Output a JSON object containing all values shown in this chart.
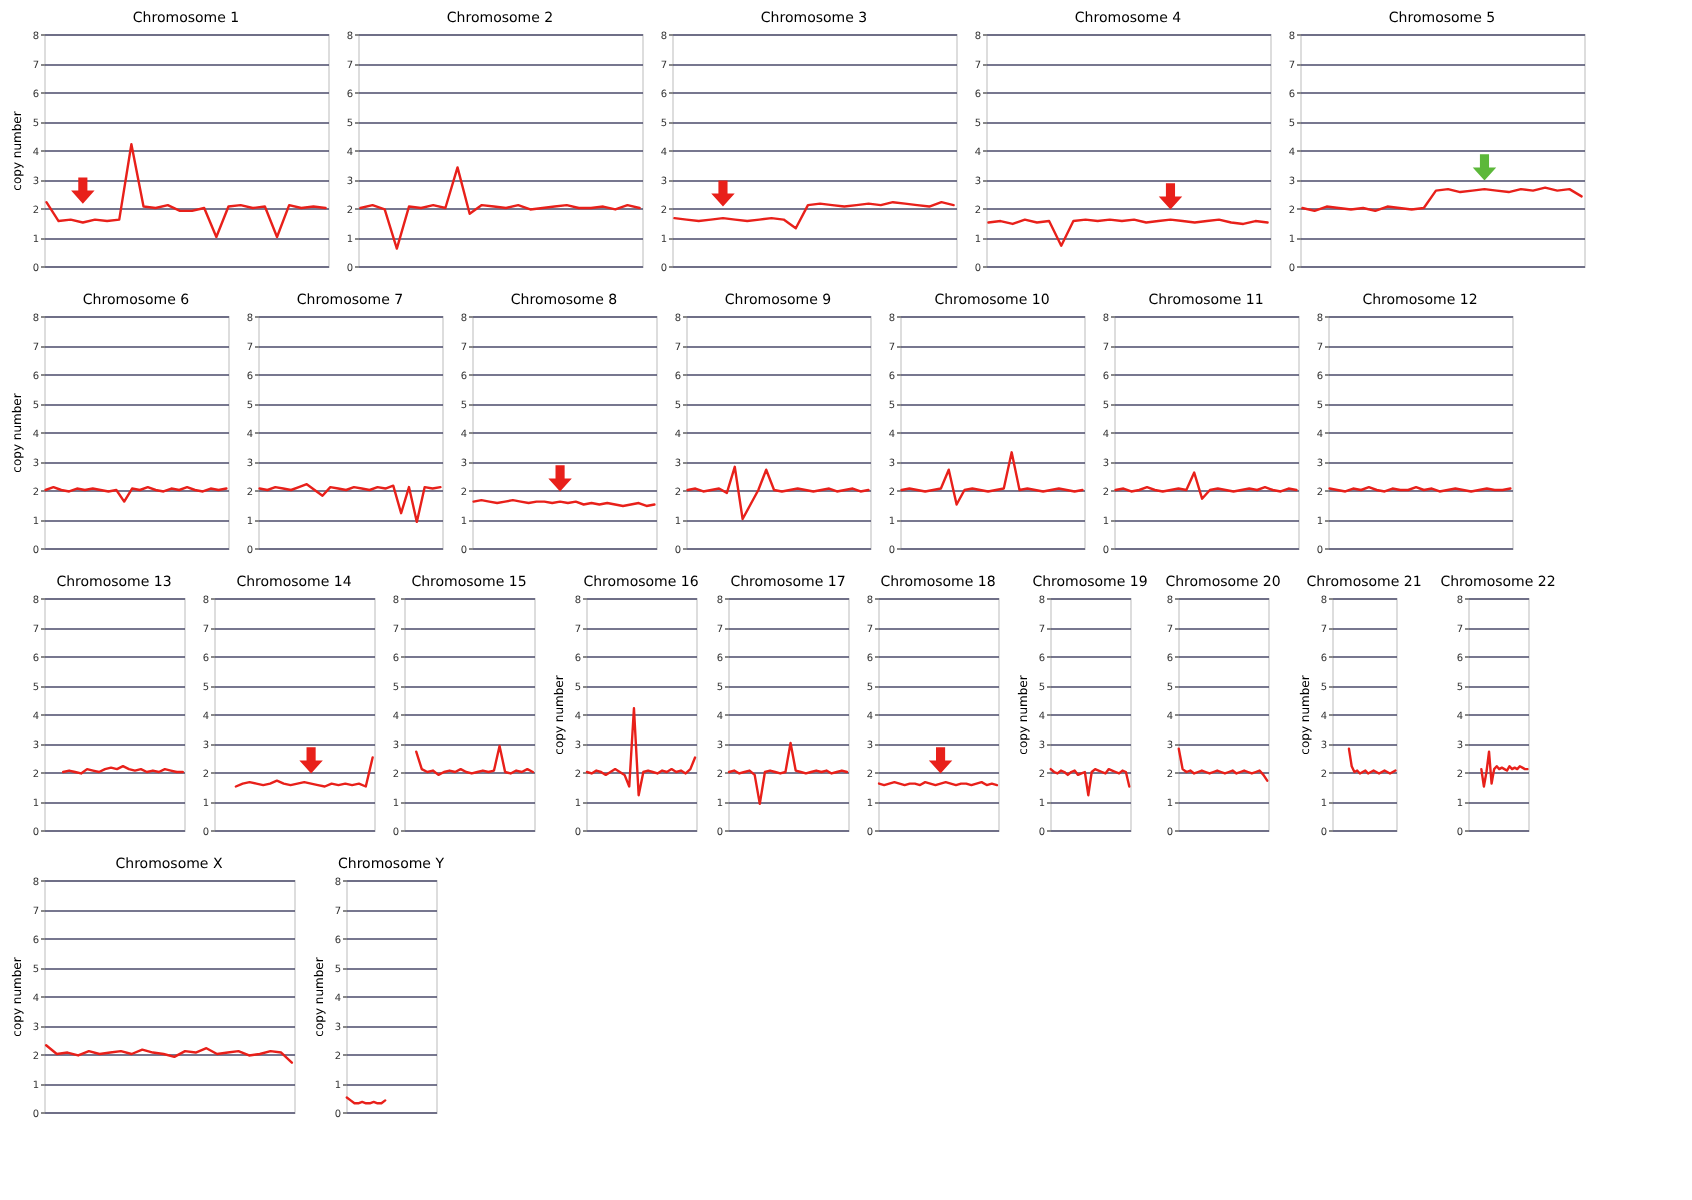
{
  "chart_data": [
    {
      "type": "line",
      "title": "Chromosome 1",
      "ylabel": "copy number",
      "categories": [
        null,
        null,
        null,
        null,
        null,
        null,
        null,
        null,
        null,
        null,
        null,
        null,
        null,
        null,
        null,
        null,
        null,
        null,
        null,
        null,
        null,
        null,
        null,
        null
      ],
      "series": [
        {
          "color": "#e8201a",
          "values": [
            2.2,
            1.55,
            1.6,
            1.5,
            1.6,
            1.55,
            1.6,
            4.2,
            2.05,
            2.0,
            2.1,
            1.9,
            1.9,
            2.0,
            1.0,
            2.05,
            2.1,
            2.0,
            2.05,
            1.0,
            2.1,
            2.0,
            2.05,
            2.0
          ]
        }
      ],
      "ylim": [
        0,
        8
      ],
      "yticks": [
        0,
        1,
        2,
        3,
        4,
        5,
        6,
        7,
        8
      ],
      "grid": "y"
    },
    {
      "type": "line",
      "title": "Chromosome 2",
      "categories": [
        null,
        null,
        null,
        null,
        null,
        null,
        null,
        null,
        null,
        null,
        null,
        null,
        null,
        null,
        null,
        null,
        null,
        null,
        null,
        null,
        null,
        null,
        null,
        null
      ],
      "series": [
        {
          "color": "#e8201a",
          "values": [
            2.0,
            2.1,
            1.95,
            0.6,
            2.05,
            2.0,
            2.1,
            2.0,
            3.4,
            1.8,
            2.1,
            2.05,
            2.0,
            2.1,
            1.95,
            2.0,
            2.05,
            2.1,
            2.0,
            2.0,
            2.05,
            1.95,
            2.1,
            2.0
          ]
        }
      ],
      "ylim": [
        0,
        8
      ],
      "yticks": [
        0,
        1,
        2,
        3,
        4,
        5,
        6,
        7,
        8
      ],
      "grid": "y"
    },
    {
      "type": "line",
      "title": "Chromosome 3",
      "categories": [
        null,
        null,
        null,
        null,
        null,
        null,
        null,
        null,
        null,
        null,
        null,
        null,
        null,
        null,
        null,
        null,
        null,
        null,
        null,
        null,
        null,
        null,
        null,
        null
      ],
      "series": [
        {
          "color": "#e8201a",
          "values": [
            1.65,
            1.6,
            1.55,
            1.6,
            1.65,
            1.6,
            1.55,
            1.6,
            1.65,
            1.6,
            1.3,
            2.1,
            2.15,
            2.1,
            2.05,
            2.1,
            2.15,
            2.1,
            2.2,
            2.15,
            2.1,
            2.05,
            2.2,
            2.1
          ]
        }
      ],
      "ylim": [
        0,
        8
      ],
      "yticks": [
        0,
        1,
        2,
        3,
        4,
        5,
        6,
        7,
        8
      ],
      "grid": "y"
    },
    {
      "type": "line",
      "title": "Chromosome 4",
      "categories": [
        null,
        null,
        null,
        null,
        null,
        null,
        null,
        null,
        null,
        null,
        null,
        null,
        null,
        null,
        null,
        null,
        null,
        null,
        null,
        null,
        null,
        null,
        null,
        null
      ],
      "series": [
        {
          "color": "#e8201a",
          "values": [
            1.5,
            1.55,
            1.45,
            1.6,
            1.5,
            1.55,
            0.7,
            1.55,
            1.6,
            1.55,
            1.6,
            1.55,
            1.6,
            1.5,
            1.55,
            1.6,
            1.55,
            1.5,
            1.55,
            1.6,
            1.5,
            1.45,
            1.55,
            1.5
          ]
        }
      ],
      "ylim": [
        0,
        8
      ],
      "yticks": [
        0,
        1,
        2,
        3,
        4,
        5,
        6,
        7,
        8
      ],
      "grid": "y"
    },
    {
      "type": "line",
      "title": "Chromosome 5",
      "categories": [
        null,
        null,
        null,
        null,
        null,
        null,
        null,
        null,
        null,
        null,
        null,
        null,
        null,
        null,
        null,
        null,
        null,
        null,
        null,
        null,
        null,
        null,
        null,
        null
      ],
      "series": [
        {
          "color": "#e8201a",
          "values": [
            2.0,
            1.9,
            2.05,
            2.0,
            1.95,
            2.0,
            1.9,
            2.05,
            2.0,
            1.95,
            2.0,
            2.6,
            2.65,
            2.55,
            2.6,
            2.65,
            2.6,
            2.55,
            2.65,
            2.6,
            2.7,
            2.6,
            2.65,
            2.4
          ]
        }
      ],
      "ylim": [
        0,
        8
      ],
      "yticks": [
        0,
        1,
        2,
        3,
        4,
        5,
        6,
        7,
        8
      ],
      "grid": "y"
    },
    {
      "type": "line",
      "title": "Chromosome 6",
      "ylabel": "copy number",
      "categories": [
        null,
        null,
        null,
        null,
        null,
        null,
        null,
        null,
        null,
        null,
        null,
        null,
        null,
        null,
        null,
        null,
        null,
        null,
        null,
        null,
        null,
        null,
        null,
        null
      ],
      "series": [
        {
          "color": "#e8201a",
          "values": [
            2.0,
            2.1,
            2.0,
            1.95,
            2.05,
            2.0,
            2.05,
            2.0,
            1.95,
            2.0,
            1.6,
            2.05,
            2.0,
            2.1,
            2.0,
            1.95,
            2.05,
            2.0,
            2.1,
            2.0,
            1.95,
            2.05,
            2.0,
            2.05
          ]
        }
      ],
      "ylim": [
        0,
        8
      ],
      "yticks": [
        0,
        1,
        2,
        3,
        4,
        5,
        6,
        7,
        8
      ],
      "grid": "y"
    },
    {
      "type": "line",
      "title": "Chromosome 7",
      "categories": [
        null,
        null,
        null,
        null,
        null,
        null,
        null,
        null,
        null,
        null,
        null,
        null,
        null,
        null,
        null,
        null,
        null,
        null,
        null,
        null,
        null,
        null,
        null,
        null
      ],
      "series": [
        {
          "color": "#e8201a",
          "values": [
            2.05,
            2.0,
            2.1,
            2.05,
            2.0,
            2.1,
            2.2,
            2.0,
            1.8,
            2.1,
            2.05,
            2.0,
            2.1,
            2.05,
            2.0,
            2.1,
            2.05,
            2.15,
            1.2,
            2.1,
            0.9,
            2.1,
            2.05,
            2.1
          ]
        }
      ],
      "ylim": [
        0,
        8
      ],
      "yticks": [
        0,
        1,
        2,
        3,
        4,
        5,
        6,
        7,
        8
      ],
      "grid": "y"
    },
    {
      "type": "line",
      "title": "Chromosome 8",
      "categories": [
        null,
        null,
        null,
        null,
        null,
        null,
        null,
        null,
        null,
        null,
        null,
        null,
        null,
        null,
        null,
        null,
        null,
        null,
        null,
        null,
        null,
        null,
        null,
        null
      ],
      "series": [
        {
          "color": "#e8201a",
          "values": [
            1.6,
            1.65,
            1.6,
            1.55,
            1.6,
            1.65,
            1.6,
            1.55,
            1.6,
            1.6,
            1.55,
            1.6,
            1.55,
            1.6,
            1.5,
            1.55,
            1.5,
            1.55,
            1.5,
            1.45,
            1.5,
            1.55,
            1.45,
            1.5
          ]
        }
      ],
      "ylim": [
        0,
        8
      ],
      "yticks": [
        0,
        1,
        2,
        3,
        4,
        5,
        6,
        7,
        8
      ],
      "grid": "y"
    },
    {
      "type": "line",
      "title": "Chromosome 9",
      "categories": [
        null,
        null,
        null,
        null,
        null,
        null,
        null,
        null,
        null,
        null,
        null,
        null,
        null,
        null,
        null,
        null,
        null,
        null,
        null,
        null,
        null,
        null,
        null,
        null
      ],
      "series": [
        {
          "color": "#e8201a",
          "values": [
            2.0,
            2.05,
            1.95,
            2.0,
            2.05,
            1.9,
            2.8,
            1.0,
            1.5,
            2.0,
            2.7,
            2.0,
            1.95,
            2.0,
            2.05,
            2.0,
            1.95,
            2.0,
            2.05,
            1.95,
            2.0,
            2.05,
            1.95,
            2.0
          ]
        }
      ],
      "ylim": [
        0,
        8
      ],
      "yticks": [
        0,
        1,
        2,
        3,
        4,
        5,
        6,
        7,
        8
      ],
      "grid": "y"
    },
    {
      "type": "line",
      "title": "Chromosome 10",
      "categories": [
        null,
        null,
        null,
        null,
        null,
        null,
        null,
        null,
        null,
        null,
        null,
        null,
        null,
        null,
        null,
        null,
        null,
        null,
        null,
        null,
        null,
        null,
        null,
        null
      ],
      "series": [
        {
          "color": "#e8201a",
          "values": [
            2.0,
            2.05,
            2.0,
            1.95,
            2.0,
            2.05,
            2.7,
            1.5,
            2.0,
            2.05,
            2.0,
            1.95,
            2.0,
            2.05,
            3.3,
            2.0,
            2.05,
            2.0,
            1.95,
            2.0,
            2.05,
            2.0,
            1.95,
            2.0
          ]
        }
      ],
      "ylim": [
        0,
        8
      ],
      "yticks": [
        0,
        1,
        2,
        3,
        4,
        5,
        6,
        7,
        8
      ],
      "grid": "y"
    },
    {
      "type": "line",
      "title": "Chromosome 11",
      "categories": [
        null,
        null,
        null,
        null,
        null,
        null,
        null,
        null,
        null,
        null,
        null,
        null,
        null,
        null,
        null,
        null,
        null,
        null,
        null,
        null,
        null,
        null,
        null,
        null
      ],
      "series": [
        {
          "color": "#e8201a",
          "values": [
            2.0,
            2.05,
            1.95,
            2.0,
            2.1,
            2.0,
            1.95,
            2.0,
            2.05,
            2.0,
            2.6,
            1.7,
            2.0,
            2.05,
            2.0,
            1.95,
            2.0,
            2.05,
            2.0,
            2.1,
            2.0,
            1.95,
            2.05,
            2.0
          ]
        }
      ],
      "ylim": [
        0,
        8
      ],
      "yticks": [
        0,
        1,
        2,
        3,
        4,
        5,
        6,
        7,
        8
      ],
      "grid": "y"
    },
    {
      "type": "line",
      "title": "Chromosome 12",
      "categories": [
        null,
        null,
        null,
        null,
        null,
        null,
        null,
        null,
        null,
        null,
        null,
        null,
        null,
        null,
        null,
        null,
        null,
        null,
        null,
        null,
        null,
        null,
        null,
        null
      ],
      "series": [
        {
          "color": "#e8201a",
          "values": [
            2.05,
            2.0,
            1.95,
            2.05,
            2.0,
            2.1,
            2.0,
            1.95,
            2.05,
            2.0,
            2.0,
            2.1,
            2.0,
            2.05,
            1.95,
            2.0,
            2.05,
            2.0,
            1.95,
            2.0,
            2.05,
            2.0,
            2.0,
            2.05
          ]
        }
      ],
      "ylim": [
        0,
        8
      ],
      "yticks": [
        0,
        1,
        2,
        3,
        4,
        5,
        6,
        7,
        8
      ],
      "grid": "y"
    },
    {
      "type": "line",
      "title": "Chromosome 13",
      "categories": [
        null,
        null,
        null,
        null,
        null,
        null,
        null,
        null,
        null,
        null,
        null,
        null,
        null,
        null,
        null,
        null,
        null,
        null,
        null,
        null,
        null,
        null,
        null,
        null
      ],
      "series": [
        {
          "color": "#e8201a",
          "values": [
            null,
            null,
            null,
            2.0,
            2.05,
            2.0,
            1.95,
            2.1,
            2.05,
            2.0,
            2.1,
            2.15,
            2.1,
            2.2,
            2.1,
            2.05,
            2.1,
            2.0,
            2.05,
            2.0,
            2.1,
            2.05,
            2.0,
            2.0
          ]
        }
      ],
      "ylim": [
        0,
        8
      ],
      "yticks": [
        0,
        1,
        2,
        3,
        4,
        5,
        6,
        7,
        8
      ],
      "grid": "y"
    },
    {
      "type": "line",
      "title": "Chromosome 14",
      "categories": [
        null,
        null,
        null,
        null,
        null,
        null,
        null,
        null,
        null,
        null,
        null,
        null,
        null,
        null,
        null,
        null,
        null,
        null,
        null,
        null,
        null,
        null,
        null,
        null
      ],
      "series": [
        {
          "color": "#e8201a",
          "values": [
            null,
            null,
            null,
            1.5,
            1.6,
            1.65,
            1.6,
            1.55,
            1.6,
            1.7,
            1.6,
            1.55,
            1.6,
            1.65,
            1.6,
            1.55,
            1.5,
            1.6,
            1.55,
            1.6,
            1.55,
            1.6,
            1.5,
            2.5
          ]
        }
      ],
      "ylim": [
        0,
        8
      ],
      "yticks": [
        0,
        1,
        2,
        3,
        4,
        5,
        6,
        7,
        8
      ],
      "grid": "y"
    },
    {
      "type": "line",
      "title": "Chromosome 15",
      "categories": [
        null,
        null,
        null,
        null,
        null,
        null,
        null,
        null,
        null,
        null,
        null,
        null,
        null,
        null,
        null,
        null,
        null,
        null,
        null,
        null,
        null,
        null,
        null,
        null
      ],
      "series": [
        {
          "color": "#e8201a",
          "values": [
            null,
            null,
            2.7,
            2.1,
            2.0,
            2.05,
            1.9,
            2.0,
            2.05,
            2.0,
            2.1,
            2.0,
            1.95,
            2.0,
            2.05,
            2.0,
            2.05,
            2.9,
            2.0,
            1.95,
            2.05,
            2.0,
            2.1,
            2.0
          ]
        }
      ],
      "ylim": [
        0,
        8
      ],
      "yticks": [
        0,
        1,
        2,
        3,
        4,
        5,
        6,
        7,
        8
      ],
      "grid": "y"
    },
    {
      "type": "line",
      "title": "Chromosome 16",
      "ylabel": "copy number",
      "categories": [
        null,
        null,
        null,
        null,
        null,
        null,
        null,
        null,
        null,
        null,
        null,
        null,
        null,
        null,
        null,
        null,
        null,
        null,
        null,
        null,
        null,
        null,
        null,
        null
      ],
      "series": [
        {
          "color": "#e8201a",
          "values": [
            2.0,
            1.95,
            2.05,
            2.0,
            1.9,
            2.0,
            2.1,
            2.0,
            1.9,
            1.5,
            4.2,
            1.2,
            2.0,
            2.05,
            2.0,
            1.95,
            2.05,
            2.0,
            2.1,
            2.0,
            2.05,
            1.95,
            2.1,
            2.5
          ]
        }
      ],
      "ylim": [
        0,
        8
      ],
      "yticks": [
        0,
        1,
        2,
        3,
        4,
        5,
        6,
        7,
        8
      ],
      "grid": "y"
    },
    {
      "type": "line",
      "title": "Chromosome 17",
      "categories": [
        null,
        null,
        null,
        null,
        null,
        null,
        null,
        null,
        null,
        null,
        null,
        null,
        null,
        null,
        null,
        null,
        null,
        null,
        null,
        null,
        null,
        null,
        null,
        null
      ],
      "series": [
        {
          "color": "#e8201a",
          "values": [
            2.0,
            2.05,
            1.95,
            2.0,
            2.05,
            1.9,
            0.9,
            2.0,
            2.05,
            2.0,
            1.95,
            2.0,
            3.0,
            2.05,
            2.0,
            1.95,
            2.0,
            2.05,
            2.0,
            2.05,
            1.95,
            2.0,
            2.05,
            2.0
          ]
        }
      ],
      "ylim": [
        0,
        8
      ],
      "yticks": [
        0,
        1,
        2,
        3,
        4,
        5,
        6,
        7,
        8
      ],
      "grid": "y"
    },
    {
      "type": "line",
      "title": "Chromosome 18",
      "categories": [
        null,
        null,
        null,
        null,
        null,
        null,
        null,
        null,
        null,
        null,
        null,
        null,
        null,
        null,
        null,
        null,
        null,
        null,
        null,
        null,
        null,
        null,
        null,
        null
      ],
      "series": [
        {
          "color": "#e8201a",
          "values": [
            1.6,
            1.55,
            1.6,
            1.65,
            1.6,
            1.55,
            1.6,
            1.6,
            1.55,
            1.65,
            1.6,
            1.55,
            1.6,
            1.65,
            1.6,
            1.55,
            1.6,
            1.6,
            1.55,
            1.6,
            1.65,
            1.55,
            1.6,
            1.55
          ]
        }
      ],
      "ylim": [
        0,
        8
      ],
      "yticks": [
        0,
        1,
        2,
        3,
        4,
        5,
        6,
        7,
        8
      ],
      "grid": "y"
    },
    {
      "type": "line",
      "title": "Chromosome 19",
      "ylabel": "copy number",
      "categories": [
        null,
        null,
        null,
        null,
        null,
        null,
        null,
        null,
        null,
        null,
        null,
        null,
        null,
        null,
        null,
        null,
        null,
        null,
        null,
        null,
        null,
        null,
        null,
        null
      ],
      "series": [
        {
          "color": "#e8201a",
          "values": [
            2.1,
            2.0,
            1.95,
            2.05,
            2.0,
            1.9,
            2.0,
            2.05,
            1.9,
            1.95,
            2.0,
            1.2,
            2.0,
            2.1,
            2.05,
            2.0,
            1.95,
            2.1,
            2.05,
            2.0,
            1.95,
            2.05,
            2.0,
            1.5
          ]
        }
      ],
      "ylim": [
        0,
        8
      ],
      "yticks": [
        0,
        1,
        2,
        3,
        4,
        5,
        6,
        7,
        8
      ],
      "grid": "y"
    },
    {
      "type": "line",
      "title": "Chromosome 20",
      "categories": [
        null,
        null,
        null,
        null,
        null,
        null,
        null,
        null,
        null,
        null,
        null,
        null,
        null,
        null,
        null,
        null,
        null,
        null,
        null,
        null,
        null,
        null,
        null,
        null
      ],
      "series": [
        {
          "color": "#e8201a",
          "values": [
            2.8,
            2.1,
            2.0,
            2.05,
            1.95,
            2.0,
            2.05,
            2.0,
            1.95,
            2.0,
            2.05,
            2.0,
            1.95,
            2.0,
            2.05,
            1.95,
            2.0,
            2.05,
            2.0,
            1.95,
            2.0,
            2.05,
            1.9,
            1.7
          ]
        }
      ],
      "ylim": [
        0,
        8
      ],
      "yticks": [
        0,
        1,
        2,
        3,
        4,
        5,
        6,
        7,
        8
      ],
      "grid": "y"
    },
    {
      "type": "line",
      "title": "Chromosome 21",
      "ylabel": "copy number",
      "categories": [
        null,
        null,
        null,
        null,
        null,
        null,
        null,
        null,
        null,
        null,
        null,
        null,
        null,
        null,
        null,
        null,
        null,
        null,
        null,
        null,
        null,
        null,
        null,
        null
      ],
      "series": [
        {
          "color": "#e8201a",
          "values": [
            null,
            null,
            null,
            null,
            null,
            null,
            2.8,
            2.2,
            2.0,
            2.05,
            1.95,
            2.0,
            2.05,
            1.95,
            2.0,
            2.05,
            2.0,
            1.95,
            2.0,
            2.05,
            2.0,
            1.95,
            2.0,
            2.05
          ]
        }
      ],
      "ylim": [
        0,
        8
      ],
      "yticks": [
        0,
        1,
        2,
        3,
        4,
        5,
        6,
        7,
        8
      ],
      "grid": "y"
    },
    {
      "type": "line",
      "title": "Chromosome 22",
      "categories": [
        null,
        null,
        null,
        null,
        null,
        null,
        null,
        null,
        null,
        null,
        null,
        null,
        null,
        null,
        null,
        null,
        null,
        null,
        null,
        null,
        null,
        null,
        null,
        null
      ],
      "series": [
        {
          "color": "#e8201a",
          "values": [
            null,
            null,
            null,
            null,
            null,
            2.1,
            1.5,
            2.0,
            2.7,
            1.6,
            2.1,
            2.2,
            2.1,
            2.15,
            2.1,
            2.05,
            2.2,
            2.1,
            2.15,
            2.1,
            2.2,
            2.15,
            2.1,
            2.1
          ]
        }
      ],
      "ylim": [
        0,
        8
      ],
      "yticks": [
        0,
        1,
        2,
        3,
        4,
        5,
        6,
        7,
        8
      ],
      "grid": "y"
    },
    {
      "type": "line",
      "title": "Chromosome X",
      "ylabel": "copy number",
      "categories": [
        null,
        null,
        null,
        null,
        null,
        null,
        null,
        null,
        null,
        null,
        null,
        null,
        null,
        null,
        null,
        null,
        null,
        null,
        null,
        null,
        null,
        null,
        null,
        null
      ],
      "series": [
        {
          "color": "#e8201a",
          "values": [
            2.3,
            2.0,
            2.05,
            1.95,
            2.1,
            2.0,
            2.05,
            2.1,
            2.0,
            2.15,
            2.05,
            2.0,
            1.9,
            2.1,
            2.05,
            2.2,
            2.0,
            2.05,
            2.1,
            1.95,
            2.0,
            2.1,
            2.05,
            1.7
          ]
        }
      ],
      "ylim": [
        0,
        8
      ],
      "yticks": [
        0,
        1,
        2,
        3,
        4,
        5,
        6,
        7,
        8
      ],
      "grid": "y"
    },
    {
      "type": "line",
      "title": "Chromosome Y",
      "ylabel": "copy number",
      "categories": [
        null,
        null,
        null,
        null,
        null,
        null,
        null,
        null,
        null,
        null,
        null,
        null,
        null,
        null,
        null,
        null,
        null,
        null,
        null,
        null,
        null,
        null,
        null,
        null
      ],
      "series": [
        {
          "color": "#e8201a",
          "values": [
            0.5,
            0.4,
            0.3,
            0.3,
            0.35,
            0.3,
            0.3,
            0.35,
            0.3,
            0.3,
            0.4,
            null,
            null,
            null,
            null,
            null,
            null,
            null,
            null,
            null,
            null,
            null,
            null,
            null
          ]
        }
      ],
      "ylim": [
        0,
        8
      ],
      "yticks": [
        0,
        1,
        2,
        3,
        4,
        5,
        6,
        7,
        8
      ],
      "grid": "y"
    }
  ]
}
